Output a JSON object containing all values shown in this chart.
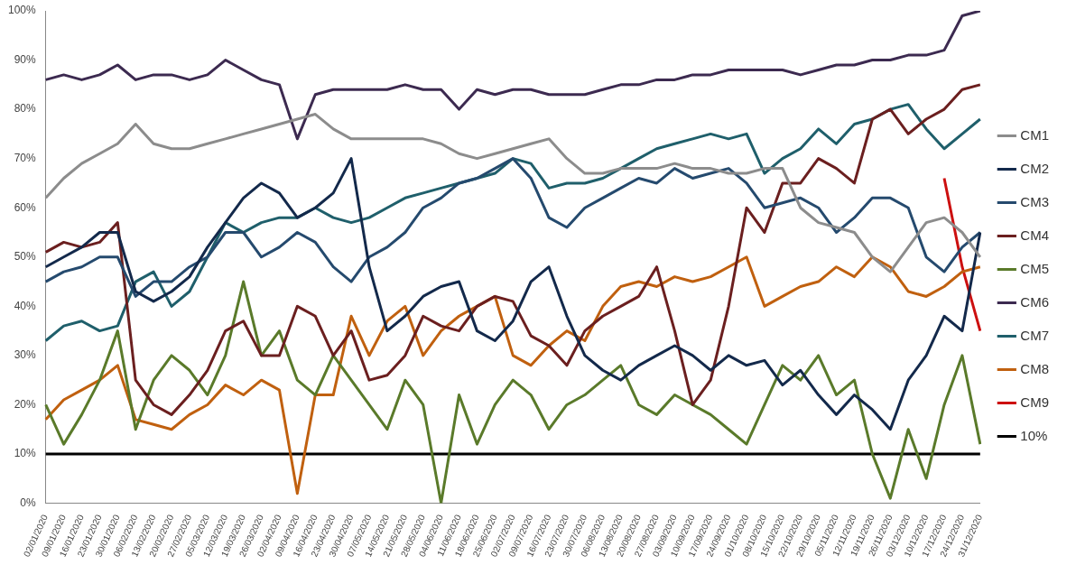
{
  "chart_data": {
    "type": "line",
    "categories": [
      "02/01/2020",
      "09/01/2020",
      "16/01/2020",
      "23/01/2020",
      "30/01/2020",
      "06/02/2020",
      "13/02/2020",
      "20/02/2020",
      "27/02/2020",
      "05/03/2020",
      "12/03/2020",
      "19/03/2020",
      "26/03/2020",
      "02/04/2020",
      "09/04/2020",
      "16/04/2020",
      "23/04/2020",
      "30/04/2020",
      "07/05/2020",
      "14/05/2020",
      "21/05/2020",
      "28/05/2020",
      "04/06/2020",
      "11/06/2020",
      "18/06/2020",
      "25/06/2020",
      "02/07/2020",
      "09/07/2020",
      "16/07/2020",
      "23/07/2020",
      "30/07/2020",
      "06/08/2020",
      "13/08/2020",
      "20/08/2020",
      "27/08/2020",
      "03/09/2020",
      "10/09/2020",
      "17/09/2020",
      "24/09/2020",
      "01/10/2020",
      "08/10/2020",
      "15/10/2020",
      "22/10/2020",
      "29/10/2020",
      "05/11/2020",
      "12/11/2020",
      "19/11/2020",
      "26/11/2020",
      "03/12/2020",
      "10/12/2020",
      "17/12/2020",
      "24/12/2020",
      "31/12/2020"
    ],
    "series": [
      {
        "name": "CM1",
        "color": "#8c8c8c",
        "values": [
          62,
          66,
          69,
          71,
          73,
          77,
          73,
          72,
          72,
          73,
          74,
          75,
          76,
          77,
          78,
          79,
          76,
          74,
          74,
          74,
          74,
          74,
          73,
          71,
          70,
          71,
          72,
          73,
          74,
          70,
          67,
          67,
          68,
          68,
          68,
          69,
          68,
          68,
          67,
          67,
          68,
          68,
          60,
          57,
          56,
          55,
          50,
          47,
          52,
          57,
          58,
          55,
          50
        ]
      },
      {
        "name": "CM2",
        "color": "#13294b",
        "values": [
          48,
          50,
          52,
          55,
          55,
          43,
          41,
          43,
          46,
          52,
          57,
          62,
          65,
          63,
          58,
          60,
          63,
          70,
          48,
          35,
          38,
          42,
          44,
          45,
          35,
          33,
          37,
          45,
          48,
          38,
          30,
          27,
          25,
          28,
          30,
          32,
          30,
          27,
          30,
          28,
          29,
          24,
          27,
          22,
          18,
          22,
          19,
          15,
          25,
          30,
          38,
          35,
          55
        ]
      },
      {
        "name": "CM3",
        "color": "#254a6e",
        "values": [
          45,
          47,
          48,
          50,
          50,
          42,
          45,
          45,
          48,
          50,
          55,
          55,
          50,
          52,
          55,
          53,
          48,
          45,
          50,
          52,
          55,
          60,
          62,
          65,
          66,
          68,
          70,
          66,
          58,
          56,
          60,
          62,
          64,
          66,
          65,
          68,
          66,
          67,
          68,
          65,
          60,
          61,
          62,
          60,
          55,
          58,
          62,
          62,
          60,
          50,
          47,
          52,
          55
        ]
      },
      {
        "name": "CM4",
        "color": "#6b1f1f",
        "values": [
          51,
          53,
          52,
          53,
          57,
          25,
          20,
          18,
          22,
          27,
          35,
          37,
          30,
          30,
          40,
          38,
          30,
          35,
          25,
          26,
          30,
          38,
          36,
          35,
          40,
          42,
          41,
          34,
          32,
          28,
          35,
          38,
          40,
          42,
          48,
          35,
          20,
          25,
          40,
          60,
          55,
          65,
          65,
          70,
          68,
          65,
          78,
          80,
          75,
          78,
          80,
          84,
          85
        ]
      },
      {
        "name": "CM5",
        "color": "#5a7a2a",
        "values": [
          20,
          12,
          18,
          25,
          35,
          15,
          25,
          30,
          27,
          22,
          30,
          45,
          30,
          35,
          25,
          22,
          30,
          25,
          20,
          15,
          25,
          20,
          0,
          22,
          12,
          20,
          25,
          22,
          15,
          20,
          22,
          25,
          28,
          20,
          18,
          22,
          20,
          18,
          15,
          12,
          20,
          28,
          25,
          30,
          22,
          25,
          10,
          1,
          15,
          5,
          20,
          30,
          12
        ]
      },
      {
        "name": "CM6",
        "color": "#3c2a50",
        "values": [
          86,
          87,
          86,
          87,
          89,
          86,
          87,
          87,
          86,
          87,
          90,
          88,
          86,
          85,
          74,
          83,
          84,
          84,
          84,
          84,
          85,
          84,
          84,
          80,
          84,
          83,
          84,
          84,
          83,
          83,
          83,
          84,
          85,
          85,
          86,
          86,
          87,
          87,
          88,
          88,
          88,
          88,
          87,
          88,
          89,
          89,
          90,
          90,
          91,
          91,
          92,
          99,
          100
        ]
      },
      {
        "name": "CM7",
        "color": "#1f5f6b",
        "values": [
          33,
          36,
          37,
          35,
          36,
          45,
          47,
          40,
          43,
          50,
          57,
          55,
          57,
          58,
          58,
          60,
          58,
          57,
          58,
          60,
          62,
          63,
          64,
          65,
          66,
          67,
          70,
          69,
          64,
          65,
          65,
          66,
          68,
          70,
          72,
          73,
          74,
          75,
          74,
          75,
          67,
          70,
          72,
          76,
          73,
          77,
          78,
          80,
          81,
          76,
          72,
          75,
          78
        ]
      },
      {
        "name": "CM8",
        "color": "#c0600f",
        "values": [
          17,
          21,
          23,
          25,
          28,
          17,
          16,
          15,
          18,
          20,
          24,
          22,
          25,
          23,
          2,
          22,
          22,
          38,
          30,
          37,
          40,
          30,
          35,
          38,
          40,
          42,
          30,
          28,
          32,
          35,
          33,
          40,
          44,
          45,
          44,
          46,
          45,
          46,
          48,
          50,
          40,
          42,
          44,
          45,
          48,
          46,
          50,
          48,
          43,
          42,
          44,
          47,
          48
        ]
      },
      {
        "name": "CM9",
        "color": "#cc1010",
        "values": [
          null,
          null,
          null,
          null,
          null,
          null,
          null,
          null,
          null,
          null,
          null,
          null,
          null,
          null,
          null,
          null,
          null,
          null,
          null,
          null,
          null,
          null,
          null,
          null,
          null,
          null,
          null,
          null,
          null,
          null,
          null,
          null,
          null,
          null,
          null,
          null,
          null,
          null,
          null,
          null,
          null,
          null,
          null,
          null,
          null,
          null,
          null,
          null,
          null,
          null,
          66,
          48,
          35
        ]
      },
      {
        "name": "10%",
        "color": "#000000",
        "values": [
          10,
          10,
          10,
          10,
          10,
          10,
          10,
          10,
          10,
          10,
          10,
          10,
          10,
          10,
          10,
          10,
          10,
          10,
          10,
          10,
          10,
          10,
          10,
          10,
          10,
          10,
          10,
          10,
          10,
          10,
          10,
          10,
          10,
          10,
          10,
          10,
          10,
          10,
          10,
          10,
          10,
          10,
          10,
          10,
          10,
          10,
          10,
          10,
          10,
          10,
          10,
          10,
          10
        ]
      }
    ],
    "ylim": [
      0,
      100
    ],
    "yticks": [
      {
        "value": 0,
        "label": "0%"
      },
      {
        "value": 10,
        "label": "10%"
      },
      {
        "value": 20,
        "label": "20%"
      },
      {
        "value": 30,
        "label": "30%"
      },
      {
        "value": 40,
        "label": "40%"
      },
      {
        "value": 50,
        "label": "50%"
      },
      {
        "value": 60,
        "label": "60%"
      },
      {
        "value": 70,
        "label": "70%"
      },
      {
        "value": 80,
        "label": "80%"
      },
      {
        "value": 90,
        "label": "90%"
      },
      {
        "value": 100,
        "label": "100%"
      }
    ],
    "grid": false,
    "legend": "right",
    "marker": "none",
    "line_style": "solid"
  }
}
